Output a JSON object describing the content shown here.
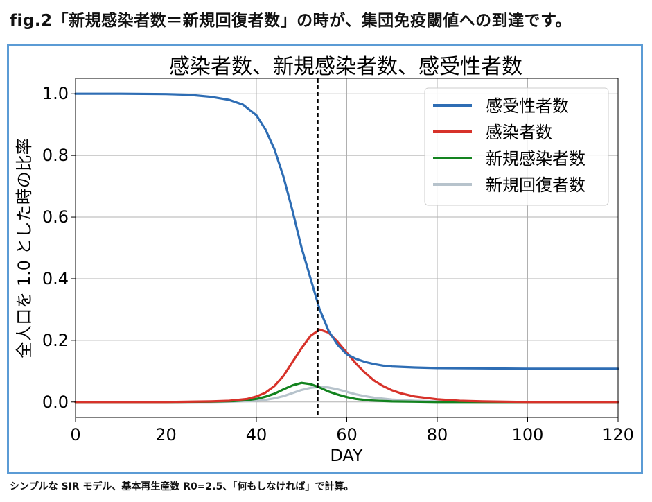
{
  "header": {
    "caption": "fig.2「新規感染者数＝新規回復者数」の時が、集団免疫閾値への到達です。"
  },
  "footer": {
    "note": "シンプルな SIR モデル、基本再生産数 R0=2.5、「何もしなければ」で計算。"
  },
  "chart_data": {
    "type": "line",
    "title": "感染者数、新規感染者数、感受性者数",
    "xlabel": "DAY",
    "ylabel": "全人口を 1.0 とした時の比率",
    "xlim": [
      0,
      120
    ],
    "ylim": [
      -0.05,
      1.05
    ],
    "xticks": [
      "0",
      "20",
      "40",
      "60",
      "80",
      "100",
      "120"
    ],
    "yticks": [
      "0.0",
      "0.2",
      "0.4",
      "0.6",
      "0.8",
      "1.0"
    ],
    "grid": true,
    "legend_position": "top-right",
    "vline": {
      "x": 53.6,
      "style": "dashed",
      "color": "#000000"
    },
    "series": [
      {
        "name": "感受性者数",
        "color": "#2e6db4",
        "x": [
          0,
          10,
          20,
          25,
          30,
          34,
          37,
          40,
          42,
          44,
          46,
          48,
          50,
          52,
          54,
          56,
          58,
          60,
          62,
          64,
          66,
          68,
          70,
          75,
          80,
          90,
          100,
          110,
          120
        ],
        "y": [
          1.0,
          1.0,
          0.999,
          0.997,
          0.99,
          0.98,
          0.965,
          0.93,
          0.885,
          0.82,
          0.73,
          0.62,
          0.5,
          0.4,
          0.3,
          0.23,
          0.185,
          0.155,
          0.14,
          0.13,
          0.123,
          0.118,
          0.115,
          0.112,
          0.11,
          0.109,
          0.108,
          0.108,
          0.108
        ]
      },
      {
        "name": "感染者数",
        "color": "#d7322a",
        "x": [
          0,
          20,
          30,
          34,
          38,
          40,
          42,
          44,
          46,
          48,
          50,
          52,
          54,
          56,
          58,
          60,
          62,
          64,
          66,
          68,
          70,
          72,
          75,
          80,
          85,
          90,
          100,
          110,
          120
        ],
        "y": [
          0.0,
          0.0,
          0.002,
          0.004,
          0.01,
          0.018,
          0.03,
          0.052,
          0.085,
          0.13,
          0.175,
          0.215,
          0.235,
          0.225,
          0.195,
          0.16,
          0.125,
          0.095,
          0.07,
          0.052,
          0.038,
          0.028,
          0.018,
          0.009,
          0.004,
          0.002,
          0.0,
          0.0,
          0.0
        ]
      },
      {
        "name": "新規感染者数",
        "color": "#13831f",
        "x": [
          0,
          20,
          30,
          35,
          38,
          40,
          42,
          44,
          46,
          48,
          50,
          52,
          54,
          56,
          58,
          60,
          62,
          65,
          70,
          75,
          80,
          90,
          100,
          120
        ],
        "y": [
          0.0,
          0.0,
          0.001,
          0.003,
          0.006,
          0.01,
          0.017,
          0.027,
          0.041,
          0.054,
          0.062,
          0.058,
          0.047,
          0.034,
          0.024,
          0.016,
          0.01,
          0.005,
          0.002,
          0.001,
          0.0,
          0.0,
          0.0,
          0.0
        ]
      },
      {
        "name": "新規回復者数",
        "color": "#b7c3cc",
        "x": [
          0,
          20,
          30,
          35,
          40,
          42,
          44,
          46,
          48,
          50,
          52,
          54,
          56,
          58,
          60,
          62,
          64,
          66,
          68,
          70,
          75,
          80,
          90,
          100,
          120
        ],
        "y": [
          0.0,
          0.0,
          0.0,
          0.001,
          0.004,
          0.007,
          0.012,
          0.019,
          0.029,
          0.039,
          0.046,
          0.049,
          0.047,
          0.041,
          0.033,
          0.025,
          0.019,
          0.014,
          0.011,
          0.008,
          0.004,
          0.002,
          0.0,
          0.0,
          0.0
        ]
      }
    ]
  }
}
